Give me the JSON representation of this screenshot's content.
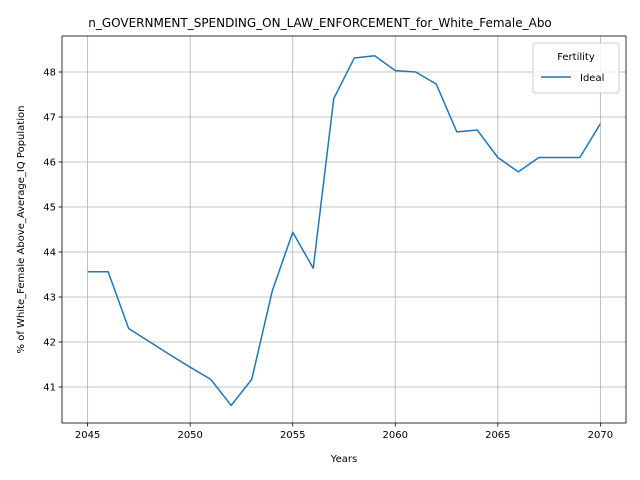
{
  "chart_data": {
    "type": "line",
    "title": "n_GOVERNMENT_SPENDING_ON_LAW_ENFORCEMENT_for_White_Female_Abo",
    "xlabel": "Years",
    "ylabel": "% of White_Female Above_Average_IQ Population",
    "xlim": [
      2043.75,
      2071.25
    ],
    "ylim": [
      40.2,
      48.8
    ],
    "xticks": [
      2045,
      2050,
      2055,
      2060,
      2065,
      2070
    ],
    "yticks": [
      41,
      42,
      43,
      44,
      45,
      46,
      47,
      48
    ],
    "grid": true,
    "legend": {
      "title": "Fertility",
      "placement": "top-right"
    },
    "series": [
      {
        "name": "Ideal",
        "color": "#1f77b4",
        "x": [
          2045,
          2046,
          2047,
          2048,
          2049,
          2050,
          2051,
          2052,
          2053,
          2054,
          2055,
          2056,
          2057,
          2058,
          2059,
          2060,
          2061,
          2062,
          2063,
          2064,
          2065,
          2066,
          2067,
          2068,
          2069,
          2070
        ],
        "y": [
          43.56,
          43.56,
          42.3,
          42.01,
          41.72,
          41.44,
          41.17,
          40.59,
          41.17,
          43.13,
          44.44,
          43.64,
          47.41,
          48.31,
          48.36,
          48.03,
          48.0,
          47.73,
          46.67,
          46.71,
          46.1,
          45.78,
          46.1,
          46.1,
          46.1,
          46.85
        ]
      }
    ]
  }
}
